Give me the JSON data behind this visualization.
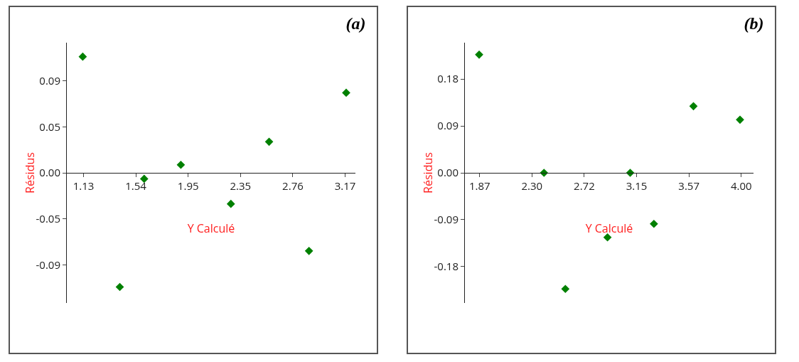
{
  "chart_data": [
    {
      "type": "scatter",
      "title": "(a)",
      "xlabel": "Y Calculé",
      "ylabel": "Résidus",
      "x": [
        1.124,
        1.413,
        1.603,
        1.889,
        2.279,
        2.577,
        2.888,
        3.178
      ],
      "values": [
        0.116,
        -0.114,
        -0.006,
        0.008,
        -0.031,
        0.031,
        -0.078,
        0.08
      ],
      "color": "#008000",
      "marker": "diamond",
      "xlim": [
        1.0,
        3.25
      ],
      "xticks": [
        1.13,
        {
          "value": 1.538,
          "label": "1.54"
        },
        {
          "value": 1.946,
          "label": "1.95"
        },
        {
          "value": 2.354,
          "label": "2.35"
        },
        {
          "value": 2.762,
          "label": "2.76"
        },
        3.17
      ],
      "ylim": [
        -0.13,
        0.13
      ],
      "yticks": [
        {
          "value": -0.092,
          "label": "-0.09"
        },
        {
          "value": -0.046,
          "label": "-0.05"
        },
        {
          "value": 0,
          "label": "0.00"
        },
        {
          "value": 0.046,
          "label": "0.05"
        },
        {
          "value": 0.092,
          "label": "0.09"
        }
      ],
      "grid": false,
      "legend": false
    },
    {
      "type": "scatter",
      "title": "(b)",
      "xlabel": "Y Calculé",
      "ylabel": "Résidus",
      "x": [
        1.866,
        2.394,
        2.568,
        2.911,
        3.096,
        3.289,
        3.611,
        3.99
      ],
      "values": [
        0.227,
        0,
        -0.223,
        -0.124,
        0,
        -0.098,
        0.128,
        0.102
      ],
      "color": "#008000",
      "marker": "diamond",
      "xlim": [
        1.75,
        4.1
      ],
      "xticks": [
        1.87,
        {
          "value": 2.296,
          "label": "2.30"
        },
        {
          "value": 2.722,
          "label": "2.72"
        },
        {
          "value": 3.148,
          "label": "3.15"
        },
        {
          "value": 3.574,
          "label": "3.57"
        },
        {
          "value": 4.0,
          "label": "4.00"
        }
      ],
      "ylim": [
        -0.25,
        0.25
      ],
      "yticks": [
        -0.18,
        -0.09,
        {
          "value": 0,
          "label": "0.00"
        },
        0.09,
        0.18
      ],
      "grid": false,
      "legend": false
    }
  ]
}
